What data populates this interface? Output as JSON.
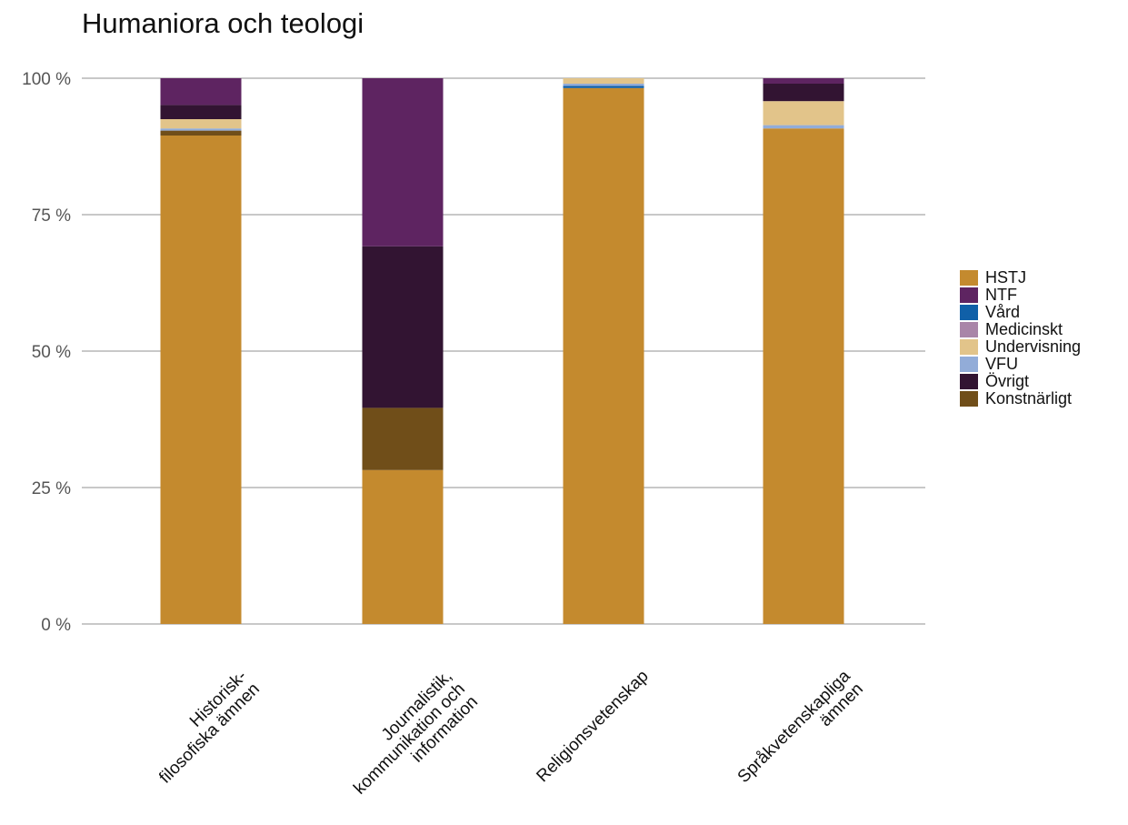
{
  "chart_data": {
    "type": "bar",
    "stacked": true,
    "title": "Humaniora och teologi",
    "xlabel": "",
    "ylabel": "",
    "ylim": [
      0,
      100
    ],
    "y_ticks": [
      "0 %",
      "25 %",
      "50 %",
      "75 %",
      "100 %"
    ],
    "y_tick_values": [
      0,
      25,
      50,
      75,
      100
    ],
    "grid": "horizontal",
    "legend_position": "right",
    "categories": [
      [
        "Historisk-",
        "filosofiska ämnen"
      ],
      [
        "Journalistik,",
        "kommunikation och",
        "information"
      ],
      [
        "Religionsvetenskap"
      ],
      [
        "Språkvetenskapliga",
        "ämnen"
      ]
    ],
    "series": [
      {
        "name": "HSTJ",
        "color": "#c48a2e",
        "values": [
          89.5,
          28.2,
          98.2,
          90.8
        ]
      },
      {
        "name": "NTF",
        "color": "#5e2461",
        "values": [
          4.9,
          30.8,
          0,
          1.0
        ]
      },
      {
        "name": "Vård",
        "color": "#1060a8",
        "values": [
          0,
          0,
          0.4,
          0
        ]
      },
      {
        "name": "Medicinskt",
        "color": "#a985a8",
        "values": [
          0,
          0,
          0,
          0
        ]
      },
      {
        "name": "Undervisning",
        "color": "#e2c48a",
        "values": [
          1.7,
          0,
          1.0,
          4.4
        ]
      },
      {
        "name": "VFU",
        "color": "#92acd8",
        "values": [
          0.4,
          0,
          0.4,
          0.6
        ]
      },
      {
        "name": "Övrigt",
        "color": "#321432",
        "values": [
          2.6,
          29.6,
          0,
          3.2
        ]
      },
      {
        "name": "Konstnärligt",
        "color": "#704e19",
        "values": [
          0.9,
          11.4,
          0,
          0
        ]
      }
    ],
    "stack_order": [
      "HSTJ",
      "Konstnärligt",
      "Vård",
      "VFU",
      "Undervisning",
      "Medicinskt",
      "Övrigt",
      "NTF"
    ]
  }
}
